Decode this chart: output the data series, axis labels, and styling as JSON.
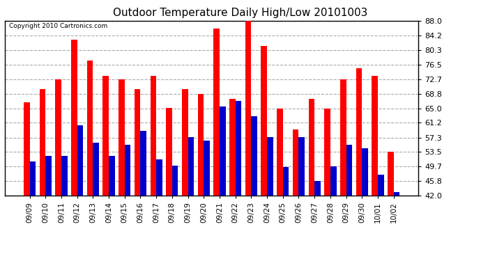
{
  "title": "Outdoor Temperature Daily High/Low 20101003",
  "copyright": "Copyright 2010 Cartronics.com",
  "dates": [
    "09/09",
    "09/10",
    "09/11",
    "09/12",
    "09/13",
    "09/14",
    "09/15",
    "09/16",
    "09/17",
    "09/18",
    "09/19",
    "09/20",
    "09/21",
    "09/22",
    "09/23",
    "09/24",
    "09/25",
    "09/26",
    "09/27",
    "09/28",
    "09/29",
    "09/30",
    "10/01",
    "10/02"
  ],
  "highs": [
    66.5,
    70.0,
    72.7,
    83.0,
    77.5,
    73.5,
    72.7,
    70.0,
    73.5,
    65.2,
    70.0,
    68.8,
    86.0,
    67.5,
    88.0,
    81.5,
    65.0,
    59.5,
    67.5,
    65.0,
    72.7,
    75.5,
    73.5,
    53.5
  ],
  "lows": [
    51.0,
    52.5,
    52.5,
    60.5,
    56.0,
    52.5,
    55.5,
    59.0,
    51.5,
    50.0,
    57.5,
    56.5,
    65.5,
    67.0,
    63.0,
    57.5,
    49.5,
    57.5,
    45.8,
    49.7,
    55.5,
    54.5,
    47.5,
    43.0
  ],
  "high_color": "#ff0000",
  "low_color": "#0000cc",
  "bg_color": "#ffffff",
  "grid_color": "#aaaaaa",
  "bar_width": 0.38,
  "ylim_min": 42.0,
  "ylim_max": 88.0,
  "yticks": [
    42.0,
    45.8,
    49.7,
    53.5,
    57.3,
    61.2,
    65.0,
    68.8,
    72.7,
    76.5,
    80.3,
    84.2,
    88.0
  ]
}
